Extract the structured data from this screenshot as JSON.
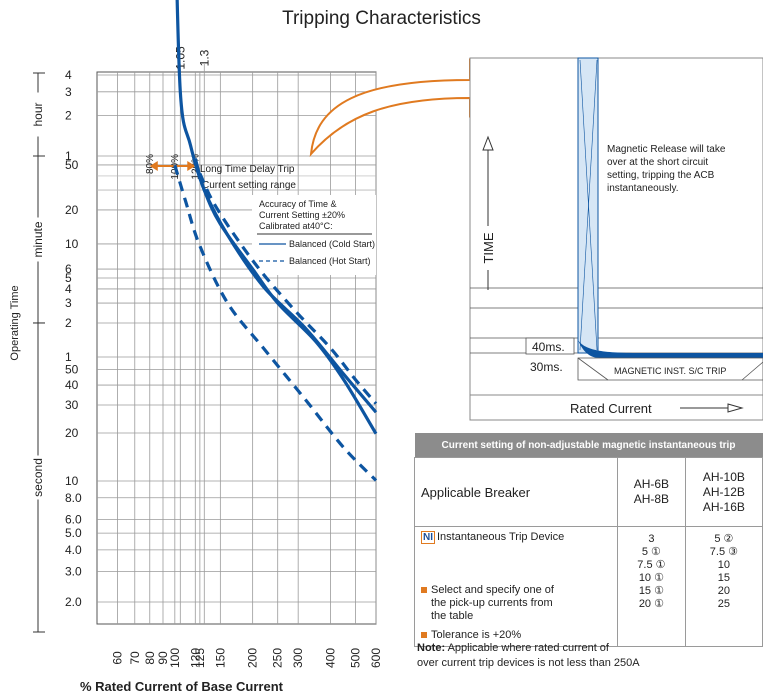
{
  "title": "Tripping Characteristics",
  "chart_data": {
    "type": "line",
    "xlabel": "% Rated Current of Base Current",
    "ylabel": "Operating Time",
    "x_scale": "log",
    "xlim": [
      50,
      600
    ],
    "x_ticks": [
      "60",
      "70",
      "80",
      "90",
      "100",
      "120",
      "125",
      "150",
      "200",
      "250",
      "300",
      "400",
      "500",
      "600"
    ],
    "top_ticks": [
      "1.05",
      "1.3"
    ],
    "y_units": [
      {
        "name": "hour",
        "ticks": [
          "4",
          "3",
          "2",
          "1"
        ]
      },
      {
        "name": "minute",
        "ticks": [
          "50",
          "20",
          "10",
          "6",
          "5",
          "4",
          "3",
          "2",
          "1"
        ]
      },
      {
        "name": "second",
        "ticks": [
          "50",
          "40",
          "30",
          "20",
          "10",
          "8.0",
          "6.0",
          "5.0",
          "4.0",
          "3.0",
          "2.0"
        ]
      }
    ],
    "markers": [
      "80%",
      "100%",
      "120%"
    ],
    "annotations": {
      "long_time_delay": "Long Time Delay Trip",
      "current_range": "Current setting range",
      "accuracy_1": "Accuracy of Time &",
      "accuracy_2": "Current Setting ±20%",
      "accuracy_3": "Calibrated at40°C:"
    },
    "legend": [
      {
        "label": "Balanced (Cold Start)",
        "style": "solid"
      },
      {
        "label": "Balanced (Hot Start)",
        "style": "dashed"
      }
    ],
    "series": [
      {
        "style": "solid",
        "points": [
          [
            100,
            6.5
          ],
          [
            105,
            3
          ],
          [
            115,
            1.2
          ],
          [
            130,
            0.5
          ],
          [
            160,
            0.2
          ],
          [
            220,
            0.07
          ],
          [
            320,
            0.03
          ],
          [
            450,
            0.013
          ],
          [
            600,
            0.0075
          ]
        ]
      },
      {
        "style": "dashed",
        "points": [
          [
            100,
            0.83
          ],
          [
            110,
            0.4
          ],
          [
            125,
            0.16
          ],
          [
            160,
            0.05
          ],
          [
            220,
            0.02
          ],
          [
            320,
            0.009
          ],
          [
            450,
            0.0045
          ],
          [
            600,
            0.0028
          ]
        ]
      },
      {
        "style": "solid",
        "points": [
          [
            120,
            0.95
          ],
          [
            130,
            0.5
          ],
          [
            150,
            0.25
          ],
          [
            200,
            0.1
          ],
          [
            250,
            0.05
          ],
          [
            350,
            0.023
          ],
          [
            450,
            0.012
          ],
          [
            600,
            0.0055
          ]
        ]
      },
      {
        "style": "dashed",
        "points": [
          [
            125,
            0.7
          ],
          [
            140,
            0.4
          ],
          [
            170,
            0.2
          ],
          [
            220,
            0.09
          ],
          [
            300,
            0.04
          ],
          [
            400,
            0.02
          ],
          [
            500,
            0.012
          ],
          [
            600,
            0.0085
          ]
        ]
      }
    ],
    "color": "#0d55a1",
    "accent": "#e07a20"
  },
  "magnetic_chart": {
    "ylabel": "TIME",
    "xlabel": "Rated Current",
    "note": "Magnetic Release will take over at the short circuit setting, tripping the ACB instantaneously.",
    "label_40": "40ms.",
    "label_30": "30ms.",
    "band_label": "MAGNETIC INST. S/C TRIP"
  },
  "table": {
    "header": "Current setting of non-adjustable magnetic instantaneous trip",
    "applicable_label": "Applicable Breaker",
    "col1_models": [
      "AH-6B",
      "AH-8B"
    ],
    "col2_models": [
      "AH-10B",
      "AH-12B",
      "AH-16B"
    ],
    "ni_badge": "NI",
    "ni_label": "Instantaneous Trip Device",
    "select_lines": [
      "Select and specify one of",
      "the pick-up currents from",
      "the table"
    ],
    "tolerance": "Tolerance is +20%",
    "col1_values": [
      "3",
      "5 ①",
      "7.5 ①",
      "10 ①",
      "15 ①",
      "20 ①"
    ],
    "col2_values": [
      "5 ②",
      "7.5 ③",
      "10",
      "15",
      "20",
      "25"
    ]
  },
  "note": {
    "bold": "Note:",
    "line1": "Applicable where rated current of",
    "line2": "over current trip devices is not less than 250A"
  }
}
